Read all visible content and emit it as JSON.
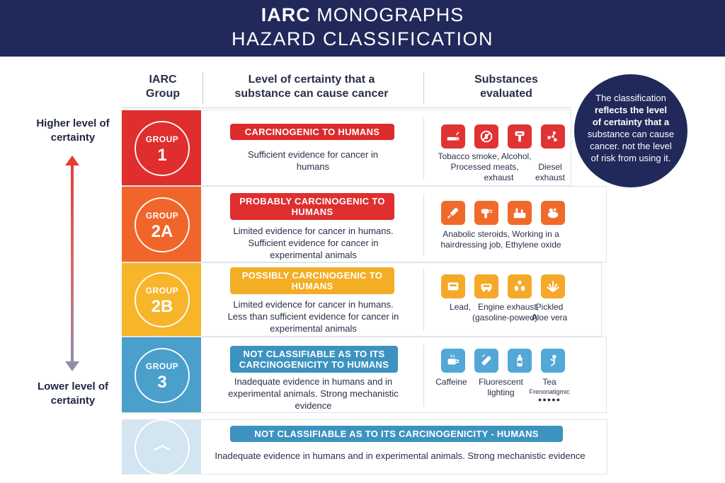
{
  "header": {
    "title_bold": "IARC",
    "title_rest": " MONOGRAPHS",
    "subtitle": "HAZARD CLASSIFICATION"
  },
  "columns": {
    "group": "IARC Group",
    "certainty": "Level of certainty that a substance can cause cancer",
    "substances": "Substances evaluated"
  },
  "scale": {
    "higher": "Higher level of certainty",
    "lower": "Lower level of certainty"
  },
  "rows": [
    {
      "group_label": "GROUP",
      "group_num": "1",
      "color": "#e02d2d",
      "category": "CARCINOGENIC TO HUMANS",
      "pill_color": "#dd2b2b",
      "desc": "Sufficient evidence for cancer in humans",
      "icon_color": "#e03333",
      "icons": [
        "cigarette-icon",
        "no-alcohol-icon",
        "meat-icon",
        "radiation-exhaust-icon"
      ],
      "substances": [
        "Tobacco smoke, Alcohol,",
        "Processed meats,",
        "exhaust",
        "Diesel",
        "exhaust"
      ]
    },
    {
      "group_label": "GROUP",
      "group_num": "2A",
      "color": "#f0662a",
      "category": "PROBABLY CARCINOGENIC TO HUMANS",
      "pill_color": "#df2f2f",
      "desc": "Limited evidence for cancer in humans. Sufficient evidence for cancer in experimental animals",
      "icon_color": "#f06a2b",
      "icons": [
        "syringe-icon",
        "hairdryer-icon",
        "factory-icon",
        "chemical-icon"
      ],
      "substances": [
        "Anabolic steroids, Working in a",
        "hairdressing job, Ethylene oxide"
      ]
    },
    {
      "group_label": "GROUP",
      "group_num": "2B",
      "color": "#f7b52a",
      "category": "POSSIBLY CARCINOGENIC TO HUMANS",
      "pill_color": "#f3ae25",
      "desc": "Limited evidence for cancer in humans. Less than sufficient evidence for cancer in experimental animals",
      "icon_color": "#f4a928",
      "icons": [
        "lead-icon",
        "engine-icon",
        "pickles-icon",
        "aloe-icon"
      ],
      "substances": [
        "Lead,",
        "Engine exhaust,",
        "(gasoline-powed)",
        "Pickled",
        "Aloe vera"
      ]
    },
    {
      "group_label": "GROUP",
      "group_num": "3",
      "color": "#4a9fcb",
      "category": "NOT CLASSIFIABLE AS TO ITS CARCINOGENICITY TO HUMANS",
      "pill_color": "#3d93c0",
      "desc": "Inadequate evidence in humans and in experimental animals. Strong mechanistic evidence",
      "icon_color": "#52a8d6",
      "icons": [
        "coffee-cup-icon",
        "fluorescent-light-icon",
        "bottle-icon",
        "tea-icon"
      ],
      "substances": [
        "Caffeine",
        "Fluorescent",
        "lighting",
        "Tea",
        "Frenonatigmic"
      ]
    }
  ],
  "row5": {
    "category": "NOT CLASSIFIABLE AS TO ITS CARCINOGENICITY - HUMANS",
    "pill_color": "#3d93c0",
    "desc": "Inadequate evidence in humans and in experimental animals. Strong mechanistic evidence"
  },
  "bubble": {
    "l1": "The classification",
    "l2": "reflects the level",
    "l3": "of certainty that a",
    "l4": "substance can cause",
    "l5": "cancer. not the level",
    "l6": "of risk from using it."
  }
}
